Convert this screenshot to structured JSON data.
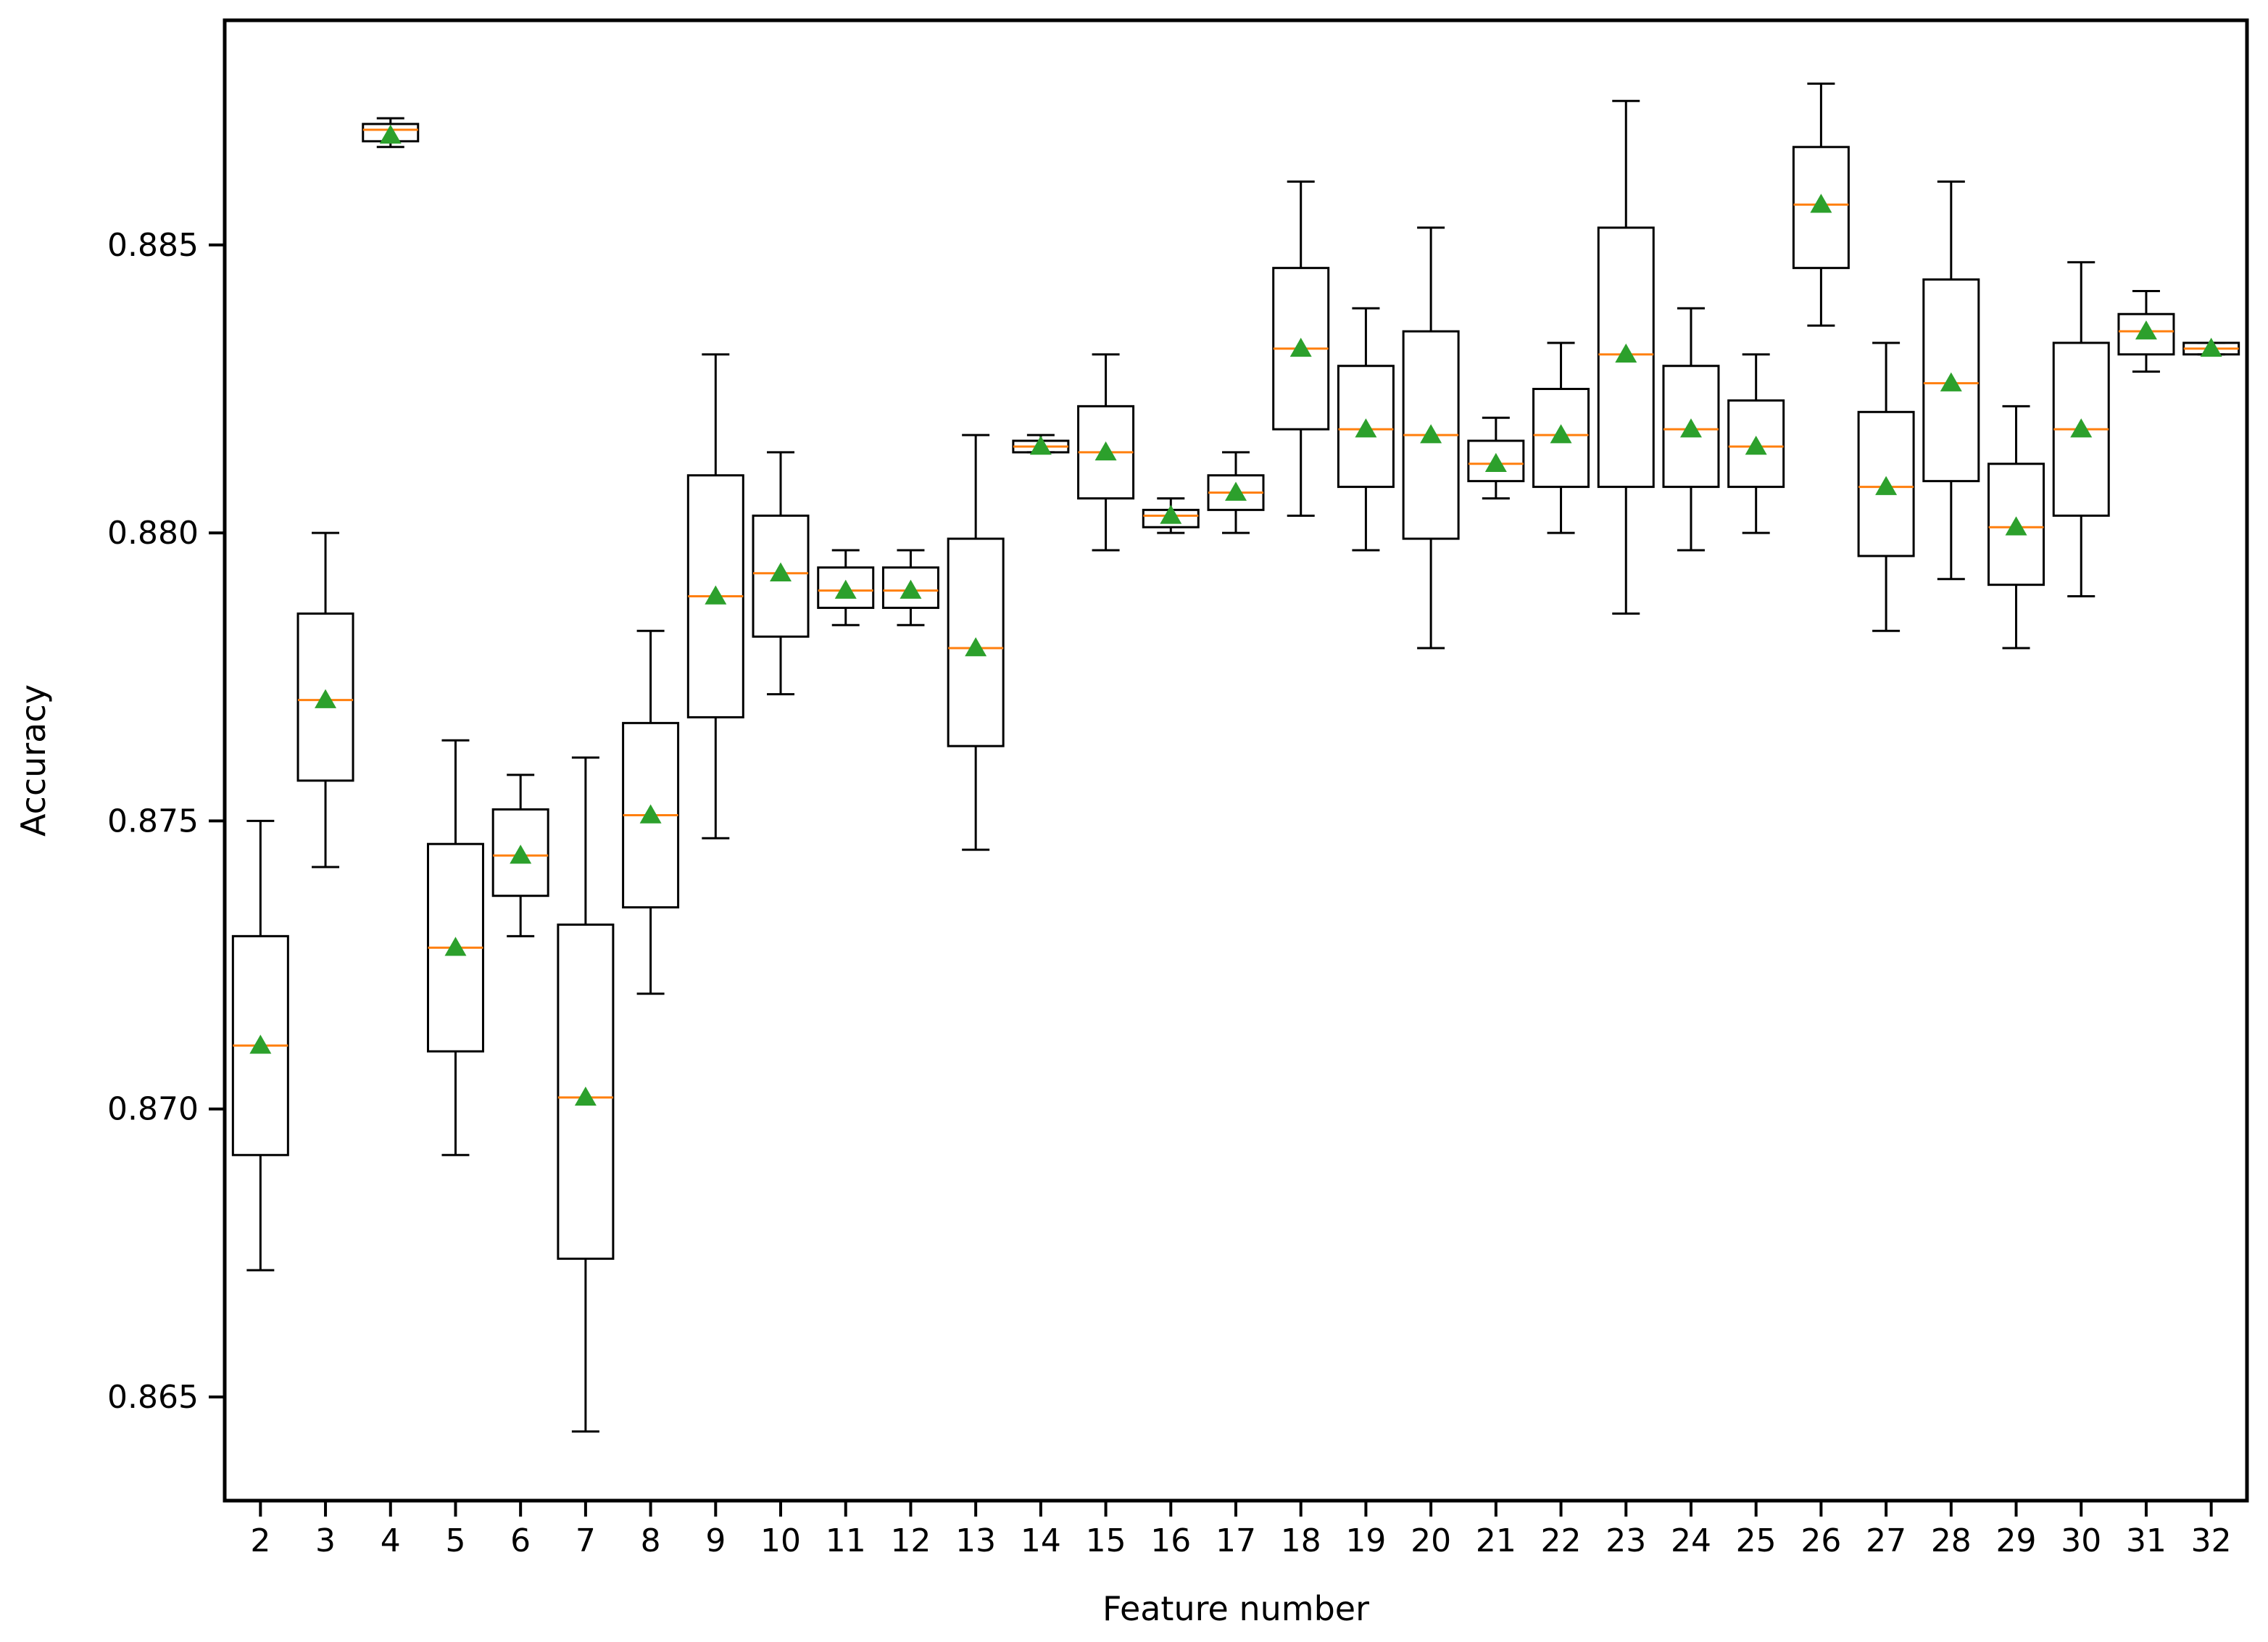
{
  "chart_data": {
    "type": "box",
    "xlabel": "Feature number",
    "ylabel": "Accuracy",
    "ylim": [
      0.8632,
      0.8889
    ],
    "yticks": [
      "0.865",
      "0.870",
      "0.875",
      "0.880",
      "0.885"
    ],
    "ytick_values": [
      0.865,
      0.87,
      0.875,
      0.88,
      0.885
    ],
    "grid": false,
    "legend": "none",
    "colors": {
      "box": "#000000",
      "median": "#ff7f0e",
      "mean": "#2ca02c"
    },
    "boxes": [
      {
        "label": "2",
        "min": 0.8672,
        "q1": 0.8692,
        "median": 0.8711,
        "q3": 0.873,
        "max": 0.875,
        "mean": 0.8711
      },
      {
        "label": "3",
        "min": 0.8742,
        "q1": 0.8757,
        "median": 0.8771,
        "q3": 0.8786,
        "max": 0.88,
        "mean": 0.8771
      },
      {
        "label": "4",
        "min": 0.8867,
        "q1": 0.8868,
        "median": 0.887,
        "q3": 0.8871,
        "max": 0.8872,
        "mean": 0.8869
      },
      {
        "label": "5",
        "min": 0.8692,
        "q1": 0.871,
        "median": 0.8728,
        "q3": 0.8746,
        "max": 0.8764,
        "mean": 0.8728
      },
      {
        "label": "6",
        "min": 0.873,
        "q1": 0.8737,
        "median": 0.8744,
        "q3": 0.8752,
        "max": 0.8758,
        "mean": 0.8744
      },
      {
        "label": "7",
        "min": 0.8644,
        "q1": 0.8674,
        "median": 0.8702,
        "q3": 0.8732,
        "max": 0.8761,
        "mean": 0.8702
      },
      {
        "label": "8",
        "min": 0.872,
        "q1": 0.8735,
        "median": 0.8751,
        "q3": 0.8767,
        "max": 0.8783,
        "mean": 0.8751
      },
      {
        "label": "9",
        "min": 0.8747,
        "q1": 0.8768,
        "median": 0.8789,
        "q3": 0.881,
        "max": 0.8831,
        "mean": 0.8789
      },
      {
        "label": "10",
        "min": 0.8772,
        "q1": 0.8782,
        "median": 0.8793,
        "q3": 0.8803,
        "max": 0.8814,
        "mean": 0.8793
      },
      {
        "label": "11",
        "min": 0.8784,
        "q1": 0.8787,
        "median": 0.879,
        "q3": 0.8794,
        "max": 0.8797,
        "mean": 0.879
      },
      {
        "label": "12",
        "min": 0.8784,
        "q1": 0.8787,
        "median": 0.879,
        "q3": 0.8794,
        "max": 0.8797,
        "mean": 0.879
      },
      {
        "label": "13",
        "min": 0.8745,
        "q1": 0.8763,
        "median": 0.878,
        "q3": 0.8799,
        "max": 0.8817,
        "mean": 0.878
      },
      {
        "label": "14",
        "min": 0.8814,
        "q1": 0.8814,
        "median": 0.8815,
        "q3": 0.8816,
        "max": 0.8817,
        "mean": 0.8815
      },
      {
        "label": "15",
        "min": 0.8797,
        "q1": 0.8806,
        "median": 0.8814,
        "q3": 0.8822,
        "max": 0.8831,
        "mean": 0.8814
      },
      {
        "label": "16",
        "min": 0.88,
        "q1": 0.8801,
        "median": 0.8803,
        "q3": 0.8804,
        "max": 0.8806,
        "mean": 0.8803
      },
      {
        "label": "17",
        "min": 0.88,
        "q1": 0.8804,
        "median": 0.8807,
        "q3": 0.881,
        "max": 0.8814,
        "mean": 0.8807
      },
      {
        "label": "18",
        "min": 0.8803,
        "q1": 0.8818,
        "median": 0.8832,
        "q3": 0.8846,
        "max": 0.8861,
        "mean": 0.8832
      },
      {
        "label": "19",
        "min": 0.8797,
        "q1": 0.8808,
        "median": 0.8818,
        "q3": 0.8829,
        "max": 0.8839,
        "mean": 0.8818
      },
      {
        "label": "20",
        "min": 0.878,
        "q1": 0.8799,
        "median": 0.8817,
        "q3": 0.8835,
        "max": 0.8853,
        "mean": 0.8817
      },
      {
        "label": "21",
        "min": 0.8806,
        "q1": 0.8809,
        "median": 0.8812,
        "q3": 0.8816,
        "max": 0.882,
        "mean": 0.8812
      },
      {
        "label": "22",
        "min": 0.88,
        "q1": 0.8808,
        "median": 0.8817,
        "q3": 0.8825,
        "max": 0.8833,
        "mean": 0.8817
      },
      {
        "label": "23",
        "min": 0.8786,
        "q1": 0.8808,
        "median": 0.8831,
        "q3": 0.8853,
        "max": 0.8875,
        "mean": 0.8831
      },
      {
        "label": "24",
        "min": 0.8797,
        "q1": 0.8808,
        "median": 0.8818,
        "q3": 0.8829,
        "max": 0.8839,
        "mean": 0.8818
      },
      {
        "label": "25",
        "min": 0.88,
        "q1": 0.8808,
        "median": 0.8815,
        "q3": 0.8823,
        "max": 0.8831,
        "mean": 0.8815
      },
      {
        "label": "26",
        "min": 0.8836,
        "q1": 0.8846,
        "median": 0.8857,
        "q3": 0.8867,
        "max": 0.8878,
        "mean": 0.8857
      },
      {
        "label": "27",
        "min": 0.8783,
        "q1": 0.8796,
        "median": 0.8808,
        "q3": 0.8821,
        "max": 0.8833,
        "mean": 0.8808
      },
      {
        "label": "28",
        "min": 0.8792,
        "q1": 0.8809,
        "median": 0.8826,
        "q3": 0.8844,
        "max": 0.8861,
        "mean": 0.8826
      },
      {
        "label": "29",
        "min": 0.878,
        "q1": 0.8791,
        "median": 0.8801,
        "q3": 0.8812,
        "max": 0.8822,
        "mean": 0.8801
      },
      {
        "label": "30",
        "min": 0.8789,
        "q1": 0.8803,
        "median": 0.8818,
        "q3": 0.8833,
        "max": 0.8847,
        "mean": 0.8818
      },
      {
        "label": "31",
        "min": 0.8828,
        "q1": 0.8831,
        "median": 0.8835,
        "q3": 0.8838,
        "max": 0.8842,
        "mean": 0.8835
      },
      {
        "label": "32",
        "min": 0.8831,
        "q1": 0.8831,
        "median": 0.8832,
        "q3": 0.8833,
        "max": 0.8833,
        "mean": 0.8832
      }
    ]
  }
}
